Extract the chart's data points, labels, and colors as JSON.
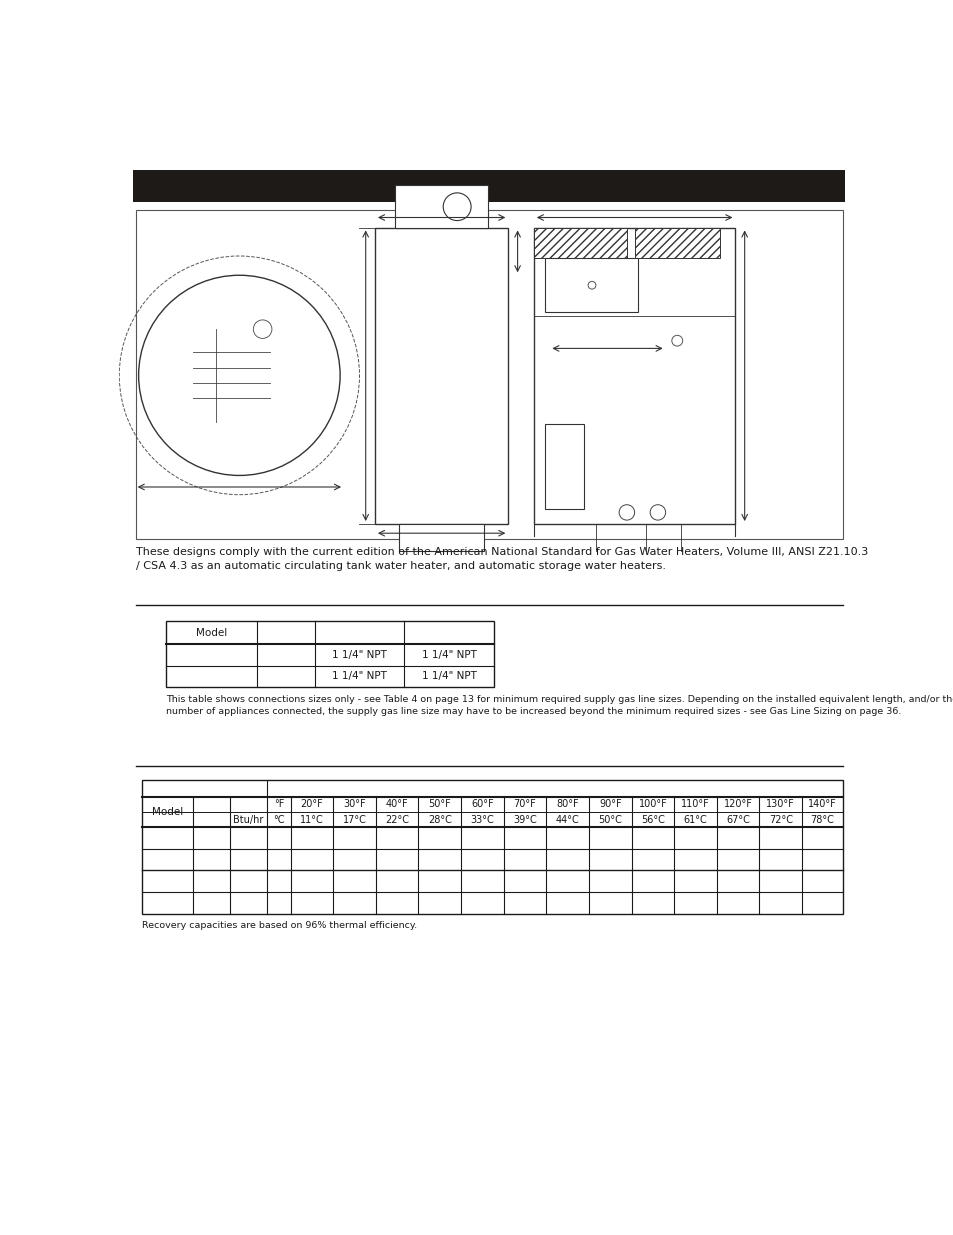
{
  "header_bg": "#1e1a17",
  "page_bg": "#ffffff",
  "body_text_color": "#1a1a1a",
  "compliance_text": "These designs comply with the current edition of the American National Standard for Gas Water Heaters, Volume III, ANSI Z21.10.3\n/ CSA 4.3 as an automatic circulating tank water heater, and automatic storage water heaters.",
  "table1_note": "This table shows connections sizes only - see Table 4 on page 13 for minimum required supply gas line sizes. Depending on the installed equivalent length, and/or the\nnumber of appliances connected, the supply gas line size may have to be increased beyond the minimum required sizes - see Gas Line Sizing on page 36.",
  "table2_note": "Recovery capacities are based on 96% thermal efficiency.",
  "table2_top_headers": [
    "",
    "",
    "",
    "°F",
    "20°F",
    "30°F",
    "40°F",
    "50°F",
    "60°F",
    "70°F",
    "80°F",
    "90°F",
    "100°F",
    "110°F",
    "120°F",
    "130°F",
    "140°F"
  ],
  "table2_sub_headers": [
    "Model",
    "",
    "Btu/hr",
    "°C",
    "11°C",
    "17°C",
    "22°C",
    "28°C",
    "33°C",
    "39°C",
    "44°C",
    "50°C",
    "56°C",
    "61°C",
    "67°C",
    "72°C",
    "78°C"
  ],
  "line_color": "#1a1a1a",
  "table_border_color": "#1a1a1a",
  "font_size_body": 8.0,
  "font_size_table": 7.5,
  "font_size_note": 6.8
}
